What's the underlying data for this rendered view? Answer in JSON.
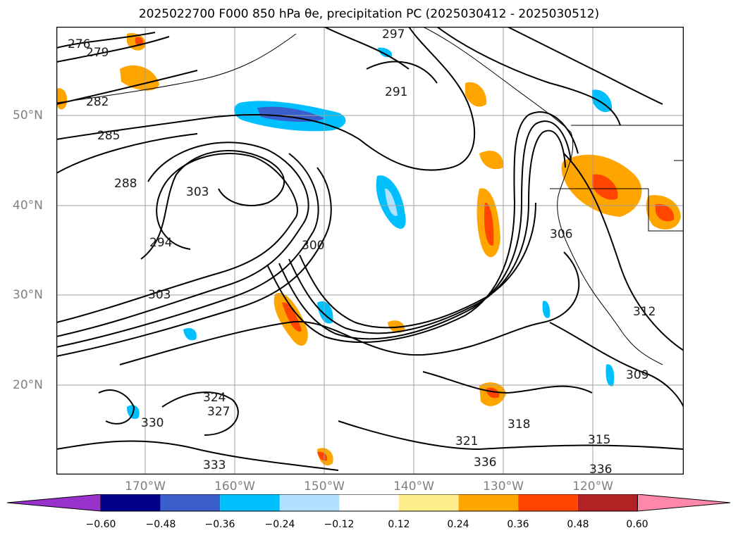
{
  "title": "2025022700 F000 850 hPa θe, precipitation PC (2025030412 - 2025030512)",
  "lat_labels": [
    "50°N",
    "40°N",
    "30°N",
    "20°N"
  ],
  "lon_labels": [
    "170°W",
    "160°W",
    "150°W",
    "140°W",
    "130°W",
    "120°W"
  ],
  "colorbar": {
    "ticks": [
      "−0.60",
      "−0.48",
      "−0.36",
      "−0.24",
      "−0.12",
      "0.12",
      "0.24",
      "0.36",
      "0.48",
      "0.60"
    ],
    "colors": [
      "#9932cc",
      "#00008b",
      "#3a5fcd",
      "#00bfff",
      "#b0e2ff",
      "#ffffff",
      "#ffec8b",
      "#ffa500",
      "#ff4500",
      "#b22222",
      "#ff88aa"
    ]
  },
  "contour_labels": [
    "276",
    "279",
    "282",
    "285",
    "288",
    "291",
    "294",
    "297",
    "300",
    "303",
    "306",
    "309",
    "312",
    "315",
    "318",
    "321",
    "324",
    "327",
    "330",
    "333",
    "336"
  ]
}
